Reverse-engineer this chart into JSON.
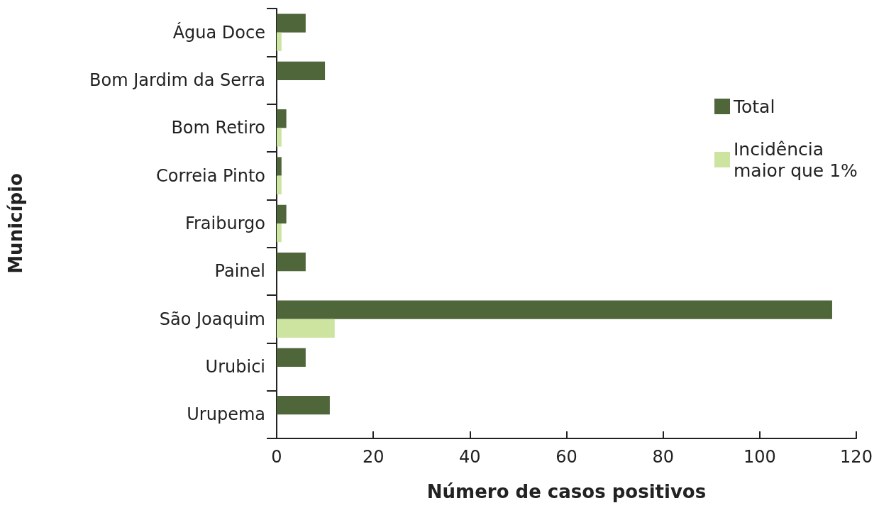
{
  "chart_data": {
    "type": "bar",
    "orientation": "horizontal",
    "xlabel": "Número de casos positivos",
    "ylabel": "Município",
    "categories": [
      "Água Doce",
      "Bom Jardim da Serra",
      "Bom Retiro",
      "Correia Pinto",
      "Fraiburgo",
      "Painel",
      "São Joaquim",
      "Urubici",
      "Urupema"
    ],
    "series": [
      {
        "name": "Total",
        "color": "#4f653a",
        "values": [
          6,
          10,
          2,
          1,
          2,
          6,
          115,
          6,
          11
        ]
      },
      {
        "name": "Incidência maior que 1%",
        "color": "#cde3a0",
        "values": [
          1,
          0,
          1,
          1,
          1,
          0,
          12,
          0,
          0
        ]
      }
    ],
    "xlim": [
      0,
      120
    ],
    "xticks": [
      0,
      20,
      40,
      60,
      80,
      100,
      120
    ],
    "grid": false,
    "legend": "right"
  }
}
